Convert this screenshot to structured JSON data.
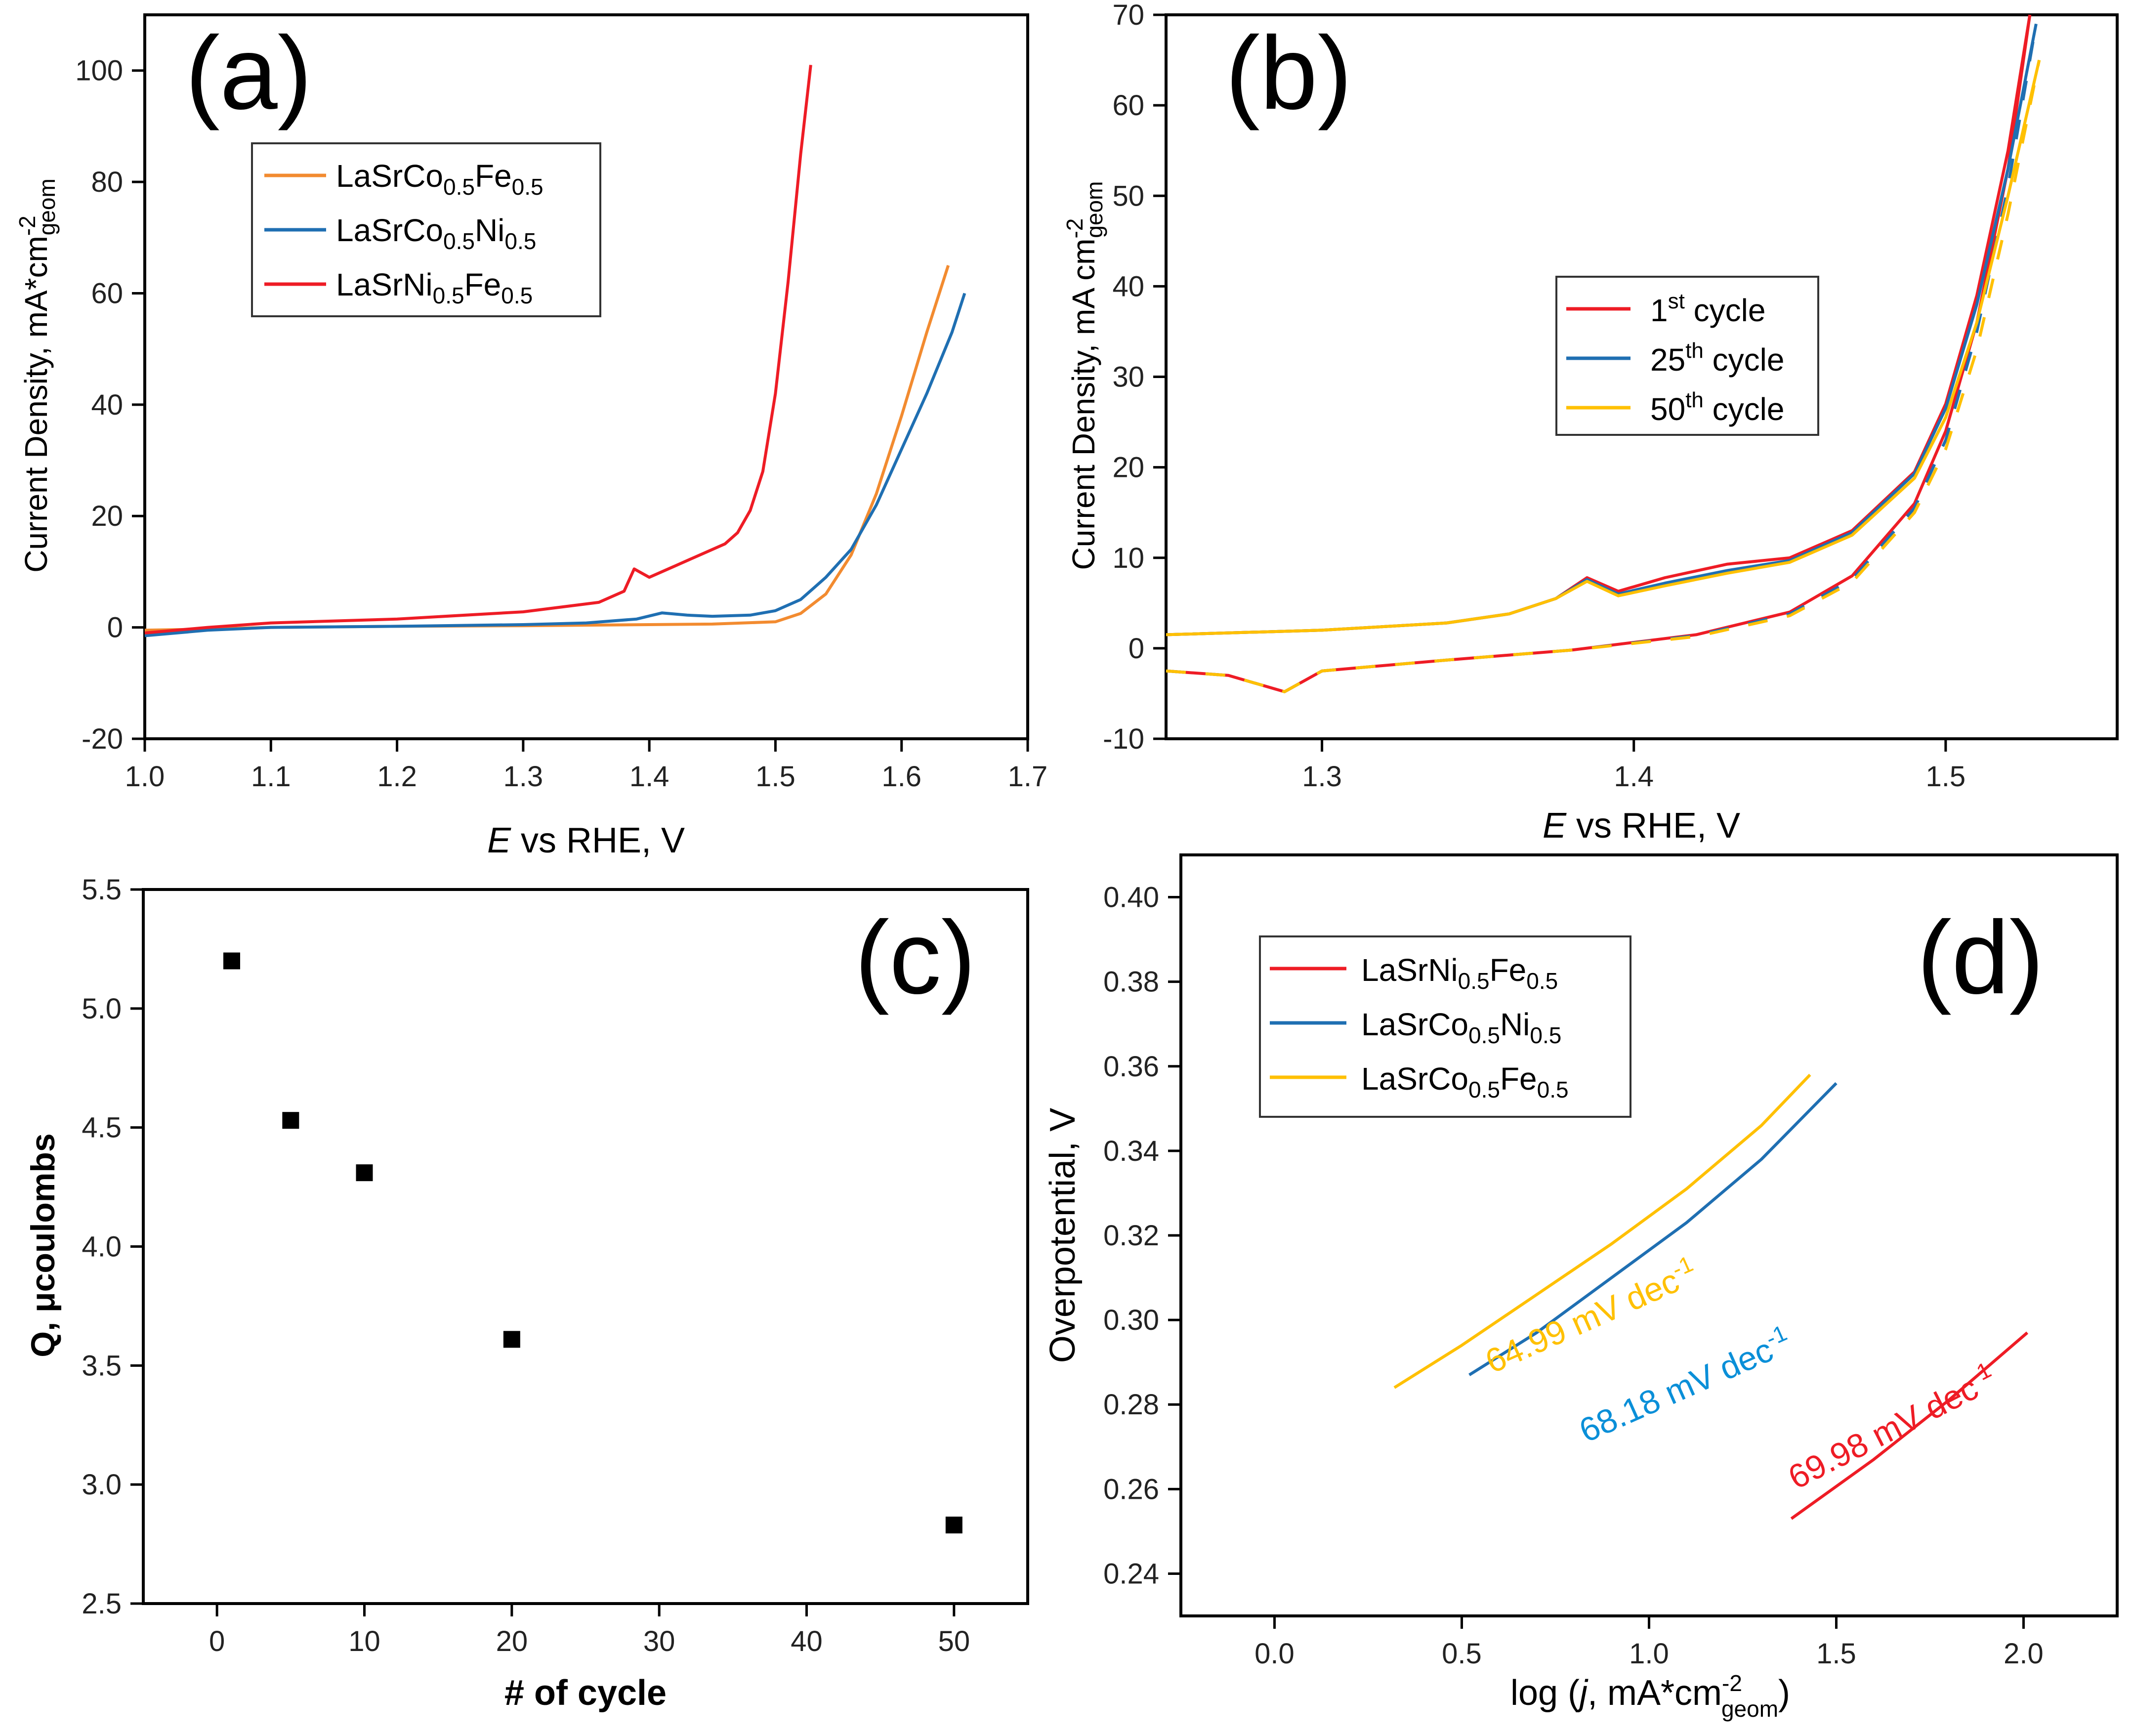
{
  "colors": {
    "orange": "#f28b30",
    "blue": "#1f6fb2",
    "red": "#ee1c25",
    "gold": "#ffc000",
    "blue_label": "#0a8fd8",
    "axis": "#000000"
  },
  "chart_data": [
    {
      "panel": "(a)",
      "type": "line",
      "xlabel_italic": "E",
      "xlabel": " vs RHE, V",
      "ylabel": "Current Density, mA*cm",
      "ylabel_sup": "-2",
      "ylabel_sub": "geom",
      "xlim": [
        1.0,
        1.7
      ],
      "ylim": [
        -20,
        110
      ],
      "xticks": [
        "1.0",
        "1.1",
        "1.2",
        "1.3",
        "1.4",
        "1.5",
        "1.6",
        "1.7"
      ],
      "yticks": [
        "-20",
        "0",
        "20",
        "40",
        "60",
        "80",
        "100"
      ],
      "legend": [
        {
          "base": "LaSrCo",
          "sub1": "0.5",
          "mid": "Fe",
          "sub2": "0.5"
        },
        {
          "base": "LaSrCo",
          "sub1": "0.5",
          "mid": "Ni",
          "sub2": "0.5"
        },
        {
          "base": "LaSrNi",
          "sub1": "0.5",
          "mid": "Fe",
          "sub2": "0.5"
        }
      ],
      "series": [
        {
          "name": "LaSrCo0.5Fe0.5",
          "color_key": "orange",
          "x": [
            1.0,
            1.05,
            1.1,
            1.2,
            1.3,
            1.4,
            1.45,
            1.5,
            1.52,
            1.54,
            1.56,
            1.58,
            1.6,
            1.62,
            1.637
          ],
          "y": [
            -0.5,
            -0.3,
            0,
            0.2,
            0.3,
            0.5,
            0.6,
            1.0,
            2.5,
            6,
            13,
            24,
            38,
            53,
            65
          ]
        },
        {
          "name": "LaSrCo0.5Ni0.5",
          "color_key": "blue",
          "x": [
            1.0,
            1.05,
            1.1,
            1.2,
            1.3,
            1.35,
            1.39,
            1.41,
            1.43,
            1.45,
            1.48,
            1.5,
            1.52,
            1.54,
            1.56,
            1.58,
            1.6,
            1.62,
            1.64,
            1.65
          ],
          "y": [
            -1.5,
            -0.5,
            0,
            0.2,
            0.5,
            0.8,
            1.5,
            2.6,
            2.2,
            2.0,
            2.2,
            3.0,
            5,
            9,
            14,
            22,
            32,
            42,
            53,
            60
          ]
        },
        {
          "name": "LaSrNi0.5Fe0.5",
          "color_key": "red",
          "x": [
            1.0,
            1.05,
            1.1,
            1.2,
            1.3,
            1.36,
            1.38,
            1.388,
            1.4,
            1.42,
            1.44,
            1.46,
            1.47,
            1.48,
            1.49,
            1.5,
            1.51,
            1.52,
            1.528
          ],
          "y": [
            -1.0,
            0,
            0.8,
            1.5,
            2.8,
            4.5,
            6.5,
            10.5,
            9,
            11,
            13,
            15,
            17,
            21,
            28,
            42,
            62,
            85,
            101
          ]
        }
      ]
    },
    {
      "panel": "(b)",
      "type": "line",
      "xlabel_italic": "E",
      "xlabel": " vs RHE, V",
      "ylabel": "Current Density, mA cm",
      "ylabel_sup": "-2",
      "ylabel_sub": "geom",
      "xlim": [
        1.25,
        1.555
      ],
      "ylim": [
        -10,
        70
      ],
      "xticks": [
        "1.3",
        "1.4",
        "1.5"
      ],
      "yticks": [
        "-10",
        "0",
        "10",
        "20",
        "30",
        "40",
        "50",
        "60",
        "70"
      ],
      "legend": [
        {
          "pre": "1",
          "sup": "st",
          "post": " cycle"
        },
        {
          "pre": "25",
          "sup": "th",
          "post": " cycle"
        },
        {
          "pre": "50",
          "sup": "th",
          "post": " cycle"
        }
      ],
      "series": [
        {
          "name": "1st cycle",
          "color_key": "red",
          "upper": {
            "x": [
              1.25,
              1.3,
              1.34,
              1.36,
              1.375,
              1.385,
              1.395,
              1.41,
              1.43,
              1.45,
              1.47,
              1.49,
              1.5,
              1.51,
              1.52,
              1.527
            ],
            "y": [
              1.5,
              2.0,
              2.8,
              3.8,
              5.5,
              7.8,
              6.3,
              7.8,
              9.3,
              10.0,
              13.0,
              19.5,
              27,
              39,
              55,
              70
            ]
          },
          "lower": {
            "x": [
              1.25,
              1.27,
              1.288,
              1.3,
              1.34,
              1.38,
              1.42,
              1.45,
              1.47,
              1.49,
              1.5,
              1.51,
              1.52,
              1.527
            ],
            "y": [
              -2.5,
              -3.0,
              -4.8,
              -2.5,
              -1.3,
              -0.2,
              1.5,
              4.0,
              8.0,
              16,
              24,
              36,
              53,
              70
            ]
          }
        },
        {
          "name": "25th cycle",
          "color_key": "blue",
          "upper": {
            "x": [
              1.25,
              1.3,
              1.34,
              1.36,
              1.375,
              1.385,
              1.395,
              1.41,
              1.43,
              1.45,
              1.47,
              1.49,
              1.5,
              1.51,
              1.52,
              1.529
            ],
            "y": [
              1.5,
              2.0,
              2.8,
              3.8,
              5.5,
              7.6,
              6.0,
              7.2,
              8.6,
              9.7,
              12.8,
              19.3,
              26.5,
              38,
              53,
              69
            ]
          },
          "lower": {
            "x": [
              1.25,
              1.27,
              1.288,
              1.3,
              1.34,
              1.38,
              1.42,
              1.45,
              1.47,
              1.49,
              1.5,
              1.51,
              1.52,
              1.529
            ],
            "y": [
              -2.5,
              -3.0,
              -4.8,
              -2.5,
              -1.3,
              -0.2,
              1.4,
              3.8,
              7.6,
              15.5,
              23,
              35,
              51,
              69
            ]
          }
        },
        {
          "name": "50th cycle",
          "color_key": "gold",
          "upper": {
            "x": [
              1.25,
              1.3,
              1.34,
              1.36,
              1.375,
              1.385,
              1.395,
              1.41,
              1.43,
              1.45,
              1.47,
              1.49,
              1.5,
              1.51,
              1.52,
              1.53
            ],
            "y": [
              1.5,
              2.0,
              2.8,
              3.8,
              5.5,
              7.4,
              5.8,
              6.9,
              8.3,
              9.5,
              12.5,
              18.8,
              25.5,
              36,
              50,
              65
            ]
          },
          "lower": {
            "x": [
              1.25,
              1.27,
              1.288,
              1.3,
              1.34,
              1.38,
              1.42,
              1.45,
              1.47,
              1.49,
              1.5,
              1.51,
              1.52,
              1.53
            ],
            "y": [
              -2.5,
              -3.0,
              -4.8,
              -2.5,
              -1.3,
              -0.2,
              1.3,
              3.6,
              7.3,
              15,
              22,
              33,
              48,
              65
            ]
          }
        }
      ]
    },
    {
      "panel": "(c)",
      "type": "scatter",
      "xlabel": "# of cycle",
      "ylabel": "Q, μcoulombs",
      "xlim": [
        -5,
        55
      ],
      "ylim": [
        2.5,
        5.5
      ],
      "xticks": [
        "0",
        "10",
        "20",
        "30",
        "40",
        "50"
      ],
      "yticks": [
        "2.5",
        "3.0",
        "3.5",
        "4.0",
        "4.5",
        "5.0",
        "5.5"
      ],
      "x": [
        1,
        5,
        10,
        20,
        50
      ],
      "y": [
        5.2,
        4.53,
        4.31,
        3.61,
        2.83
      ]
    },
    {
      "panel": "(d)",
      "type": "line",
      "xlabel": "log (",
      "xlabel_italic": "j",
      "xlabel_rest": ", mA*cm",
      "xlabel_sup": "-2",
      "xlabel_sub": "geom",
      "xlabel_close": ")",
      "ylabel": "Overpotential, V",
      "xlim": [
        -0.25,
        2.25
      ],
      "ylim": [
        0.23,
        0.41
      ],
      "xticks": [
        "0.0",
        "0.5",
        "1.0",
        "1.5",
        "2.0"
      ],
      "yticks": [
        "0.24",
        "0.26",
        "0.28",
        "0.30",
        "0.32",
        "0.34",
        "0.36",
        "0.38",
        "0.40"
      ],
      "legend": [
        {
          "base": "LaSrNi",
          "sub1": "0.5",
          "mid": "Fe",
          "sub2": "0.5"
        },
        {
          "base": "LaSrCo",
          "sub1": "0.5",
          "mid": "Ni",
          "sub2": "0.5"
        },
        {
          "base": "LaSrCo",
          "sub1": "0.5",
          "mid": "Fe",
          "sub2": "0.5"
        }
      ],
      "series": [
        {
          "name": "LaSrNi0.5Fe0.5",
          "color_key": "red",
          "x": [
            1.38,
            1.6,
            1.8,
            2.01
          ],
          "y": [
            0.253,
            0.267,
            0.281,
            0.297
          ]
        },
        {
          "name": "LaSrCo0.5Ni0.5",
          "color_key": "blue",
          "x": [
            0.52,
            0.7,
            0.9,
            1.1,
            1.3,
            1.5
          ],
          "y": [
            0.287,
            0.297,
            0.31,
            0.323,
            0.338,
            0.356
          ]
        },
        {
          "name": "LaSrCo0.5Fe0.5",
          "color_key": "gold",
          "x": [
            0.32,
            0.5,
            0.7,
            0.9,
            1.1,
            1.3,
            1.43
          ],
          "y": [
            0.284,
            0.294,
            0.306,
            0.318,
            0.331,
            0.346,
            0.358
          ]
        }
      ],
      "annotations": [
        {
          "text": "64.99 mV dec",
          "sup": "-1",
          "color_key": "gold"
        },
        {
          "text": "68.18 mV dec",
          "sup": "-1",
          "color_key": "blue_label"
        },
        {
          "text": "69.98 mV dec",
          "sup": "-1",
          "color_key": "red"
        }
      ]
    }
  ]
}
